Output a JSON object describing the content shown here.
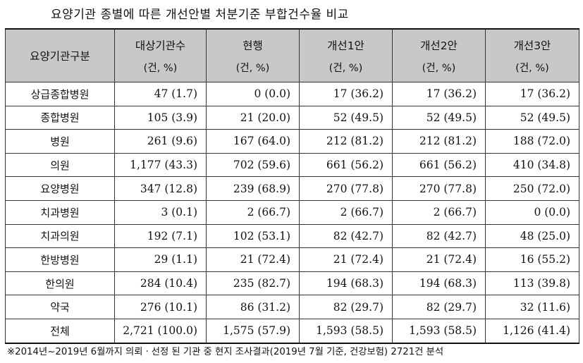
{
  "title": "요양기관 종별에 따른 개선안별 처분기준 부합건수율 비교",
  "header": {
    "first_col": "요양기관구분",
    "cols": [
      {
        "label": "대상기관수",
        "unit": "(건, %)"
      },
      {
        "label": "현행",
        "unit": "(건, %)"
      },
      {
        "label": "개선1안",
        "unit": "(건, %)"
      },
      {
        "label": "개선2안",
        "unit": "(건, %)"
      },
      {
        "label": "개선3안",
        "unit": "(건, %)"
      }
    ]
  },
  "rows": [
    {
      "name": "상급종합병원",
      "cells": [
        "47 (1.7)",
        "0 (0.0)",
        "17 (36.2)",
        "17 (36.2)",
        "17 (36.2)"
      ]
    },
    {
      "name": "종합병원",
      "cells": [
        "105 (3.9)",
        "21 (20.0)",
        "52 (49.5)",
        "52 (49.5)",
        "52 (49.5)"
      ]
    },
    {
      "name": "병원",
      "cells": [
        "261 (9.6)",
        "167 (64.0)",
        "212 (81.2)",
        "212 (81.2)",
        "188 (72.0)"
      ]
    },
    {
      "name": "의원",
      "cells": [
        "1,177 (43.3)",
        "702 (59.6)",
        "661 (56.2)",
        "661 (56.2)",
        "410 (34.8)"
      ]
    },
    {
      "name": "요양병원",
      "cells": [
        "347 (12.8)",
        "239 (68.9)",
        "270 (77.8)",
        "270 (77.8)",
        "250 (72.0)"
      ]
    },
    {
      "name": "치과병원",
      "cells": [
        "3 (0.1)",
        "2 (66.7)",
        "2 (66.7)",
        "2 (66.7)",
        "0 (0.0)"
      ]
    },
    {
      "name": "치과의원",
      "cells": [
        "192 (7.1)",
        "102 (53.1)",
        "82 (42.7)",
        "82 (42.7)",
        "48 (25.0)"
      ]
    },
    {
      "name": "한방병원",
      "cells": [
        "29 (1.1)",
        "21 (72.4)",
        "21 (72.4)",
        "21 (72.4)",
        "16 (55.2)"
      ]
    },
    {
      "name": "한의원",
      "cells": [
        "284 (10.4)",
        "235 (82.7)",
        "194 (68.3)",
        "194 (68.3)",
        "113 (39.8)"
      ]
    },
    {
      "name": "약국",
      "cells": [
        "276 (10.1)",
        "86 (31.2)",
        "82 (29.7)",
        "82 (29.7)",
        "32 (11.6)"
      ]
    },
    {
      "name": "전체",
      "cells": [
        "2,721 (100.0)",
        "1,575 (57.9)",
        "1,593 (58.5)",
        "1,593 (58.5)",
        "1,126 (41.4)"
      ]
    }
  ],
  "footnote": "※2014년~2019년 6월까지 의뢰ㆍ선정 된 기관 중 현지 조사결과(2019년 7월 기준, 건강보험) 2721건 분석"
}
